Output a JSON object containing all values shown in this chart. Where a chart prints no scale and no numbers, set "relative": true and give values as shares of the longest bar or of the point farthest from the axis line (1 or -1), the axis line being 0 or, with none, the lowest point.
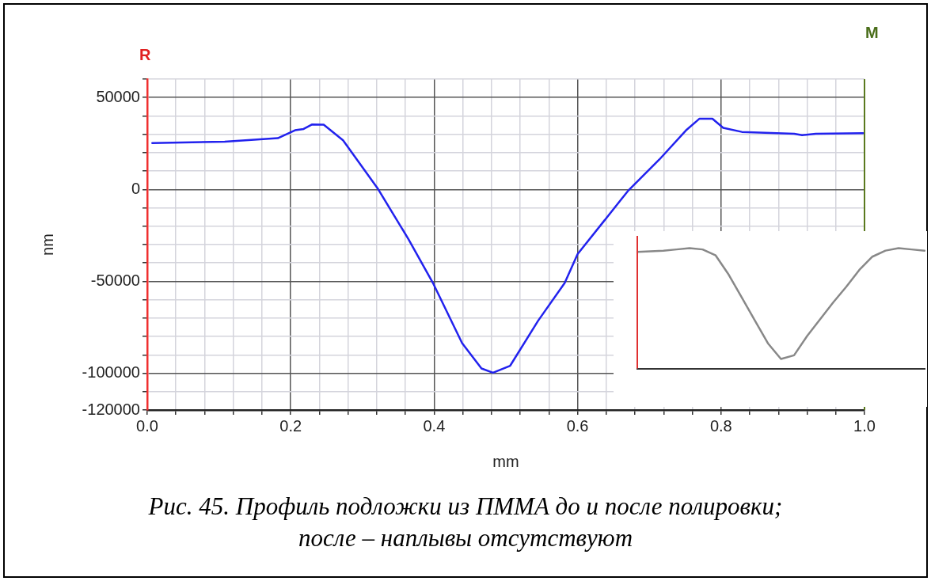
{
  "chart_data": [
    {
      "type": "line",
      "xlabel": "mm",
      "ylabel": "nm",
      "annotations": [
        "R",
        "M",
        "Рис. 45. Профиль подложки из ПММА до и после полировки; после – наплывы отсутствуют"
      ],
      "xlim": [
        0,
        1
      ],
      "ylim": [
        -120000,
        60000
      ],
      "xticks": [
        {
          "value": 0,
          "label": "0.0"
        },
        {
          "value": 0.04,
          "label": null
        },
        {
          "value": 0.08,
          "label": null
        },
        {
          "value": 0.12,
          "label": null
        },
        {
          "value": 0.16,
          "label": null
        },
        {
          "value": 0.2,
          "label": "0.2"
        },
        {
          "value": 0.24,
          "label": null
        },
        {
          "value": 0.28,
          "label": null
        },
        {
          "value": 0.32,
          "label": null
        },
        {
          "value": 0.36,
          "label": null
        },
        {
          "value": 0.4,
          "label": "0.4"
        },
        {
          "value": 0.44,
          "label": null
        },
        {
          "value": 0.48,
          "label": null
        },
        {
          "value": 0.52,
          "label": null
        },
        {
          "value": 0.56,
          "label": null
        },
        {
          "value": 0.6,
          "label": "0.6"
        },
        {
          "value": 0.64,
          "label": null
        },
        {
          "value": 0.68,
          "label": null
        },
        {
          "value": 0.72,
          "label": null
        },
        {
          "value": 0.76,
          "label": null
        },
        {
          "value": 0.8,
          "label": "0.8"
        },
        {
          "value": 0.84,
          "label": null
        },
        {
          "value": 0.88,
          "label": null
        },
        {
          "value": 0.92,
          "label": null
        },
        {
          "value": 0.96,
          "label": null
        },
        {
          "value": 1,
          "label": "1.0"
        }
      ],
      "yticks": [
        -120000,
        {
          "value": -110000,
          "label": null
        },
        -100000,
        {
          "value": -90000,
          "label": null
        },
        {
          "value": -80000,
          "label": null
        },
        {
          "value": -70000,
          "label": null
        },
        {
          "value": -60000,
          "label": null
        },
        -50000,
        {
          "value": -40000,
          "label": null
        },
        {
          "value": -30000,
          "label": null
        },
        {
          "value": -20000,
          "label": null
        },
        {
          "value": -10000,
          "label": null
        },
        0,
        {
          "value": 10000,
          "label": null
        },
        {
          "value": 20000,
          "label": null
        },
        {
          "value": 30000,
          "label": null
        },
        {
          "value": 40000,
          "label": null
        },
        50000,
        {
          "value": 60000,
          "label": null
        }
      ],
      "grid": true,
      "legend": false,
      "marker": "none",
      "line_style": "solid",
      "series": [
        {
          "color": "#2222ee",
          "x": [
            0.007,
            0.108,
            0.182,
            0.206,
            0.218,
            0.23,
            0.246,
            0.273,
            0.321,
            0.364,
            0.399,
            0.439,
            0.466,
            0.482,
            0.506,
            0.545,
            0.582,
            0.6,
            0.67,
            0.714,
            0.751,
            0.77,
            0.788,
            0.803,
            0.829,
            0.902,
            0.913,
            0.932,
            0.998
          ],
          "values": [
            25200,
            26000,
            27900,
            32200,
            32900,
            35400,
            35200,
            26700,
            700,
            -26900,
            -51400,
            -83600,
            -97400,
            -99700,
            -95900,
            -71400,
            -50900,
            -35200,
            -900,
            16300,
            32100,
            38500,
            38500,
            33500,
            31300,
            30300,
            29500,
            30300,
            30600
          ]
        }
      ]
    },
    {
      "type": "line",
      "relative": true,
      "legend": false,
      "marker": "none",
      "line_style": "solid",
      "categories": [
        null,
        null,
        null,
        null,
        null,
        null,
        null,
        null,
        null,
        null,
        null,
        null,
        null,
        null,
        null,
        null,
        null,
        null,
        null,
        null,
        null,
        null,
        null
      ],
      "series": [
        {
          "color": "#888888",
          "values": [
            0.97,
            0.975,
            0.98,
            0.99,
            1,
            0.99,
            0.94,
            0.78,
            0.59,
            0.4,
            0.21,
            0.08,
            0.11,
            0.27,
            0.41,
            0.55,
            0.68,
            0.82,
            0.93,
            0.98,
            1,
            0.99,
            0.98
          ]
        }
      ]
    }
  ]
}
